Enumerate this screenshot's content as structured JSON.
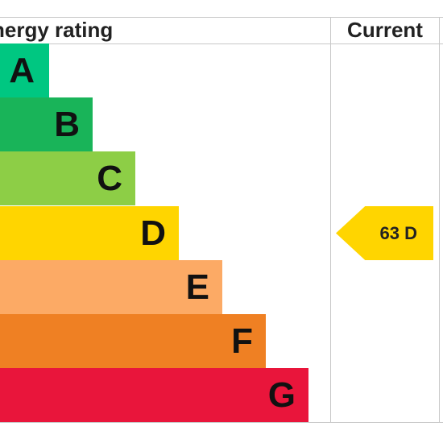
{
  "header": {
    "rating_label": "nergy rating",
    "current_label": "Current"
  },
  "chart_data": {
    "type": "bar",
    "categories": [
      "A",
      "B",
      "C",
      "D",
      "E",
      "F",
      "G"
    ],
    "colors": [
      "#00c781",
      "#19b459",
      "#8dce46",
      "#ffd500",
      "#fcaa65",
      "#ef8023",
      "#e9153b"
    ],
    "current": {
      "value": 63,
      "band": "D",
      "label": "63  D",
      "color": "#ffd500"
    }
  }
}
